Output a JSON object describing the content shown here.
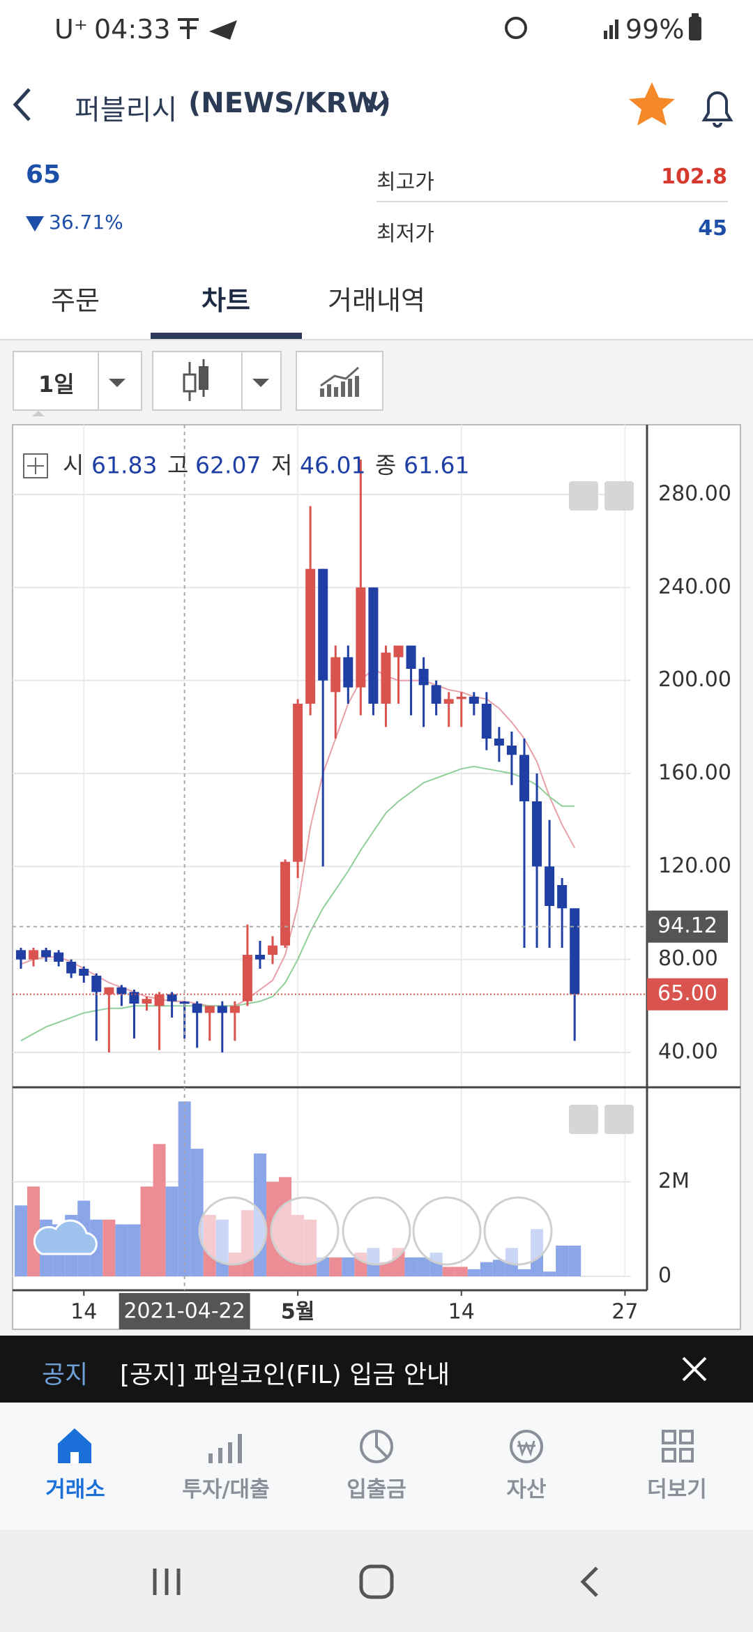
{
  "status_bar": {
    "carrier": "U⁺",
    "time": "04:33",
    "battery": "99%"
  },
  "header": {
    "name": "퍼블리시",
    "pair": "(NEWS/KRW)"
  },
  "summary": {
    "price": 65,
    "change": "36.71%",
    "high_label": "최고가",
    "high": 102.8,
    "low_label": "최저가",
    "low": 45
  },
  "tabs": [
    "주문",
    "차트",
    "거래내역"
  ],
  "toolbar": {
    "interval": "1일"
  },
  "notice": {
    "tag": "공지",
    "text": "[공지] 파일코인(FIL) 입금 안내"
  },
  "nav": [
    "거래소",
    "투자/대출",
    "입출금",
    "자산",
    "더보기"
  ],
  "chart_data": {
    "type": "candlestick",
    "legend_labels": [
      "시",
      "고",
      "저",
      "종"
    ],
    "categories": [
      null,
      null,
      null,
      null,
      null,
      "14",
      null,
      null,
      null,
      null,
      null,
      null,
      null,
      "2021-04-22",
      null,
      null,
      null,
      null,
      null,
      null,
      null,
      null,
      "5월",
      null,
      null,
      null,
      null,
      null,
      null,
      null,
      null,
      null,
      null,
      null,
      null,
      "14",
      null,
      null,
      null,
      null,
      null,
      null,
      null,
      null,
      null,
      null,
      null,
      null,
      "27",
      null
    ],
    "open": [
      84,
      80,
      84,
      83,
      79,
      76,
      73,
      65,
      68,
      66,
      61,
      60,
      65,
      61.83,
      61,
      57,
      60,
      57,
      62,
      82,
      82,
      86,
      122,
      190,
      248,
      195,
      210,
      197,
      240,
      190,
      210,
      215,
      205,
      198,
      190,
      192,
      193,
      190,
      175,
      172,
      168,
      148,
      120,
      112,
      102,
      null,
      null,
      null,
      null,
      null
    ],
    "high": [
      85,
      85,
      85,
      84,
      80,
      77,
      74,
      68,
      69,
      67,
      64,
      66,
      66,
      62.07,
      62,
      60,
      62,
      62,
      95,
      88,
      90,
      123,
      192,
      275,
      248,
      215,
      215,
      295,
      240,
      215,
      215,
      215,
      210,
      200,
      195,
      195,
      195,
      195,
      180,
      178,
      175,
      160,
      140,
      115,
      102,
      null,
      null,
      null,
      null,
      null
    ],
    "low": [
      76,
      77,
      79,
      77,
      72,
      70,
      45,
      40,
      60,
      46,
      58,
      41,
      55,
      46.01,
      42,
      45,
      40,
      45,
      60,
      76,
      78,
      85,
      115,
      185,
      120,
      175,
      190,
      185,
      185,
      180,
      190,
      185,
      180,
      185,
      180,
      180,
      185,
      170,
      165,
      155,
      85,
      85,
      85,
      85,
      45,
      null,
      null,
      null,
      null,
      null
    ],
    "close": [
      80,
      84,
      81,
      79,
      74,
      73,
      66,
      68,
      65,
      61,
      63,
      65,
      62,
      61.61,
      57,
      60,
      57,
      60,
      82,
      80,
      86,
      122,
      190,
      248,
      200,
      210,
      197,
      240,
      190,
      212,
      215,
      205,
      198,
      190,
      192,
      193,
      190,
      175,
      172,
      168,
      148,
      120,
      103,
      102,
      65,
      null,
      null,
      null,
      null,
      null
    ],
    "up_color": "#d9534f",
    "down_color": "#1f3fa5",
    "ma_series": [
      {
        "color": "#e8a0a8",
        "values": [
          78,
          80,
          81,
          81,
          79,
          76,
          73,
          70,
          68,
          66,
          64,
          63,
          62,
          62,
          61,
          60,
          60,
          60,
          63,
          67,
          71,
          82,
          103,
          137,
          160,
          175,
          190,
          200,
          205,
          202,
          200,
          200,
          200,
          198,
          196,
          195,
          193,
          192,
          188,
          182,
          175,
          165,
          150,
          138,
          128,
          null,
          null,
          null,
          null,
          null
        ]
      },
      {
        "color": "#8fcf9a",
        "values": [
          45,
          48,
          51,
          53,
          55,
          57,
          58,
          59,
          59,
          60,
          60,
          60,
          60,
          60,
          60,
          60,
          60,
          60,
          61,
          62,
          64,
          70,
          80,
          92,
          102,
          110,
          118,
          127,
          135,
          143,
          148,
          152,
          156,
          158,
          160,
          162,
          163,
          162,
          161,
          160,
          158,
          155,
          150,
          146,
          146,
          null,
          null,
          null,
          null,
          null
        ]
      }
    ],
    "ylim": [
      25,
      310
    ],
    "yticks": [
      {
        "value": 40,
        "label": "40.00"
      },
      {
        "value": 80,
        "label": "80.00"
      },
      {
        "value": 120,
        "label": "120.00"
      },
      {
        "value": 160,
        "label": "160.00"
      },
      {
        "value": 200,
        "label": "200.00"
      },
      {
        "value": 240,
        "label": "240.00"
      },
      {
        "value": 280,
        "label": "280.00"
      }
    ],
    "grid": true,
    "crosshair": {
      "x": "2021-04-22",
      "y": 94.12
    },
    "last_price": {
      "value": 65,
      "label": "65.00"
    },
    "volume": {
      "values": [
        1500000,
        1900000,
        1200000,
        1100000,
        1300000,
        1600000,
        1200000,
        1200000,
        1100000,
        1100000,
        1900000,
        2800000,
        1900000,
        3700000,
        2700000,
        1300000,
        1200000,
        500000,
        1400000,
        2600000,
        2000000,
        2100000,
        1300000,
        1200000,
        400000,
        400000,
        400000,
        500000,
        600000,
        300000,
        600000,
        400000,
        400000,
        500000,
        200000,
        200000,
        150000,
        300000,
        350000,
        600000,
        150000,
        1000000,
        100000,
        650000,
        650000,
        null,
        null,
        null,
        null,
        null
      ],
      "ylim": [
        0,
        4000000
      ],
      "yticks": [
        0,
        {
          "value": 2000000,
          "label": "2M"
        }
      ],
      "up_color": "#ec8c94",
      "down_color": "#8aa5e8"
    }
  }
}
